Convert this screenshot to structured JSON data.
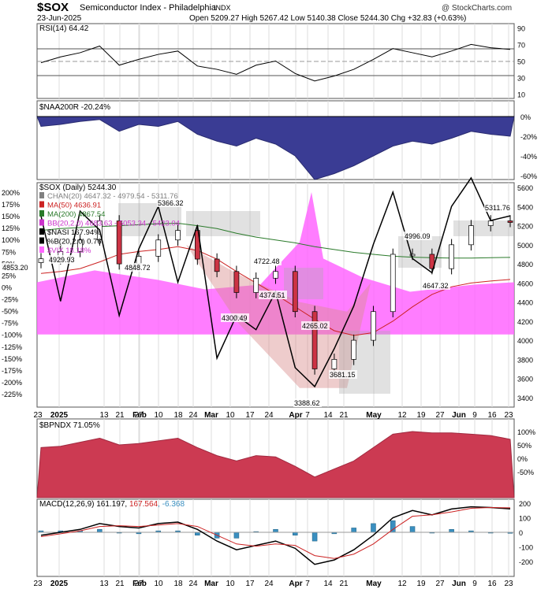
{
  "header": {
    "symbol": "$SOX",
    "name": "Semiconductor Index - Philadelphia",
    "exchange": "INDX",
    "date": "23-Jun-2025",
    "copyright": "@ StockCharts.com",
    "ohlc_line": "Open 5209.27  High 5267.42  Low 5140.38  Close 5244.30  Chg +32.83 (+0.63%)"
  },
  "colors": {
    "naa_fill": "#3a3c94",
    "bpndx_fill": "#cc3a52",
    "vix_fill": "#ff66ff",
    "ma50": "#cc2222",
    "ma200": "#2a7a2a",
    "bb": "#cc33cc",
    "macd_hist": "#3a8fc0",
    "macd_signal": "#cc2222",
    "up_candle": "#ffffff",
    "down_candle": "#cc3344"
  },
  "panels": {
    "rsi": {
      "label": "RSI(14) 64.42",
      "ticks": [
        "90",
        "70",
        "50",
        "30",
        "10"
      ]
    },
    "naa": {
      "label": "$NAA200R -20.24%",
      "ticks": [
        "0%",
        "-20%",
        "-40%",
        "-60%"
      ]
    },
    "main": {
      "label": "$SOX (Daily) 5244.30",
      "legend": [
        {
          "text": "CHAN(20) 4647.32 - 4979.54 - 5311.76",
          "color": "#808080"
        },
        {
          "text": "MA(50) 4636.91",
          "color": "#cc2222"
        },
        {
          "text": "MA(200) 4867.54",
          "color": "#2a7a2a"
        },
        {
          "text": "BB(20,2.0) 4683.63 - 5053.34 - 5423.04",
          "color": "#cc33cc"
        },
        {
          "text": "$NASI 167.94%",
          "color": "#000000"
        },
        {
          "text": "%B(20,2.0) 0.76",
          "color": "#000000"
        },
        {
          "text": "$VIX 18.18%",
          "color": "#ff66ff"
        }
      ],
      "right_ticks": [
        "5600",
        "5400",
        "5200",
        "5000",
        "4800",
        "4600",
        "4400",
        "4200",
        "4000",
        "3800",
        "3600",
        "3400"
      ],
      "left_ticks": [
        "200%",
        "175%",
        "150%",
        "125%",
        "100%",
        "75%",
        "50%",
        "25%",
        "0%",
        "-25%",
        "-50%",
        "-75%",
        "-100%",
        "-125%",
        "-150%",
        "-175%",
        "-200%",
        "-225%"
      ],
      "annotations": [
        "5366.32",
        "4929.93",
        "4853.20",
        "4848.72",
        "4722.48",
        "4300.49",
        "4374.51",
        "4265.02",
        "3681.15",
        "3388.62",
        "4996.09",
        "4647.32",
        "5311.76"
      ]
    },
    "bpndx": {
      "label": "$BPNDX 71.05%",
      "ticks": [
        "100%",
        "50%",
        "0%",
        "-50%"
      ]
    },
    "macd": {
      "label_parts": [
        "MACD(12,26,9) 161.197, ",
        "167.564",
        ", -6.368"
      ],
      "ticks": [
        "200",
        "100",
        "0",
        "-100",
        "-200"
      ]
    },
    "x_labels": [
      "23",
      "2025",
      "13",
      "21",
      "27",
      "Feb",
      "10",
      "18",
      "24",
      "Mar",
      "10",
      "17",
      "24",
      "Apr",
      "7",
      "14",
      "21",
      "May",
      "12",
      "19",
      "27",
      "Jun",
      "9",
      "16",
      "23"
    ]
  },
  "chart_data": {
    "type": "line",
    "title": "$SOX Semiconductor Index - Philadelphia",
    "dates": [
      "2024-12-23",
      "2025-01-02",
      "2025-01-13",
      "2025-01-21",
      "2025-01-27",
      "2025-02-03",
      "2025-02-10",
      "2025-02-18",
      "2025-02-24",
      "2025-03-03",
      "2025-03-10",
      "2025-03-17",
      "2025-03-24",
      "2025-03-31",
      "2025-04-07",
      "2025-04-14",
      "2025-04-21",
      "2025-05-01",
      "2025-05-12",
      "2025-05-19",
      "2025-05-27",
      "2025-06-02",
      "2025-06-09",
      "2025-06-16",
      "2025-06-23"
    ],
    "series": [
      {
        "name": "$SOX",
        "values": [
          4853,
          4930,
          5050,
          5250,
          4800,
          4880,
          5050,
          5150,
          4850,
          4720,
          4500,
          4650,
          4720,
          4300,
          3700,
          3800,
          4000,
          4300,
          4900,
          4900,
          4750,
          5000,
          5200,
          5250,
          5244
        ]
      },
      {
        "name": "MA(50)",
        "values": [
          4700,
          4720,
          4750,
          4820,
          4900,
          4930,
          4950,
          4980,
          4940,
          4850,
          4720,
          4600,
          4480,
          4350,
          4220,
          4100,
          4050,
          4080,
          4200,
          4350,
          4480,
          4560,
          4600,
          4620,
          4637
        ]
      },
      {
        "name": "MA(200)",
        "values": [
          5150,
          5170,
          5180,
          5190,
          5200,
          5210,
          5220,
          5225,
          5200,
          5170,
          5120,
          5080,
          5050,
          5020,
          4980,
          4950,
          4920,
          4900,
          4880,
          4870,
          4865,
          4860,
          4860,
          4865,
          4868
        ]
      },
      {
        "name": "RSI(14)",
        "values": [
          48,
          55,
          60,
          68,
          45,
          52,
          58,
          62,
          44,
          40,
          34,
          45,
          50,
          35,
          26,
          32,
          40,
          52,
          65,
          60,
          55,
          62,
          70,
          66,
          64
        ]
      },
      {
        "name": "$NAA200R",
        "values": [
          -10,
          -8,
          -5,
          -3,
          -15,
          -8,
          -10,
          -5,
          -18,
          -25,
          -30,
          -22,
          -28,
          -40,
          -64,
          -58,
          -50,
          -40,
          -30,
          -25,
          -28,
          -22,
          -15,
          -18,
          -20
        ]
      },
      {
        "name": "$BPNDX",
        "values": [
          40,
          45,
          60,
          75,
          50,
          55,
          65,
          75,
          40,
          10,
          -10,
          10,
          5,
          -30,
          -70,
          -40,
          -10,
          40,
          90,
          100,
          95,
          95,
          90,
          85,
          71
        ]
      },
      {
        "name": "MACD",
        "values": [
          -20,
          0,
          20,
          60,
          40,
          30,
          60,
          70,
          20,
          -60,
          -120,
          -90,
          -60,
          -110,
          -220,
          -190,
          -120,
          -20,
          100,
          150,
          120,
          160,
          175,
          170,
          161
        ]
      },
      {
        "name": "Signal",
        "values": [
          -30,
          -10,
          10,
          40,
          45,
          40,
          50,
          60,
          40,
          -20,
          -80,
          -95,
          -80,
          -90,
          -160,
          -180,
          -150,
          -80,
          20,
          110,
          120,
          140,
          165,
          170,
          168
        ]
      }
    ],
    "price_ylim": [
      3300,
      5650
    ],
    "pct_ylim": [
      -235,
      210
    ],
    "legend_placement": "top-left",
    "grid": true
  }
}
